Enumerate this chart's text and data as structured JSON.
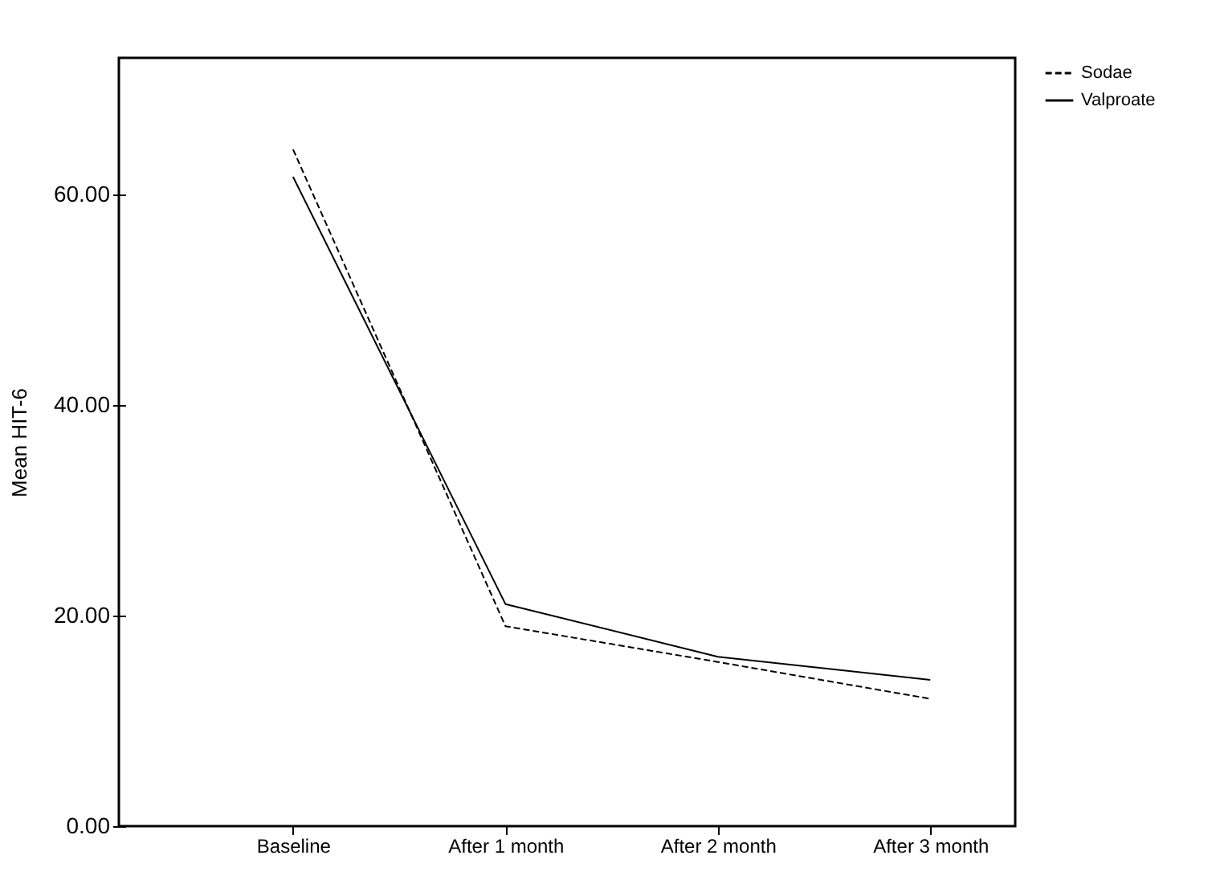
{
  "chart_data": {
    "type": "line",
    "ylabel": "Mean HIT-6",
    "categories": [
      "Baseline",
      "After 1 month",
      "After 2 month",
      "After 3 month"
    ],
    "series": [
      {
        "name": "Sodae",
        "color": "#000000",
        "line_style": "dashed",
        "values": [
          64.3,
          19.0,
          15.6,
          12.1
        ]
      },
      {
        "name": "Valproate",
        "color": "#000000",
        "line_style": "solid",
        "values": [
          61.7,
          21.1,
          16.1,
          13.9
        ]
      }
    ],
    "ylim": [
      0,
      73
    ],
    "yticks": [
      {
        "value": 0,
        "label": "0.00"
      },
      {
        "value": 20,
        "label": "20.00"
      },
      {
        "value": 40,
        "label": "40.00"
      },
      {
        "value": 60,
        "label": "60.00"
      }
    ],
    "grid": false,
    "legend": "top right",
    "marker": "none"
  }
}
